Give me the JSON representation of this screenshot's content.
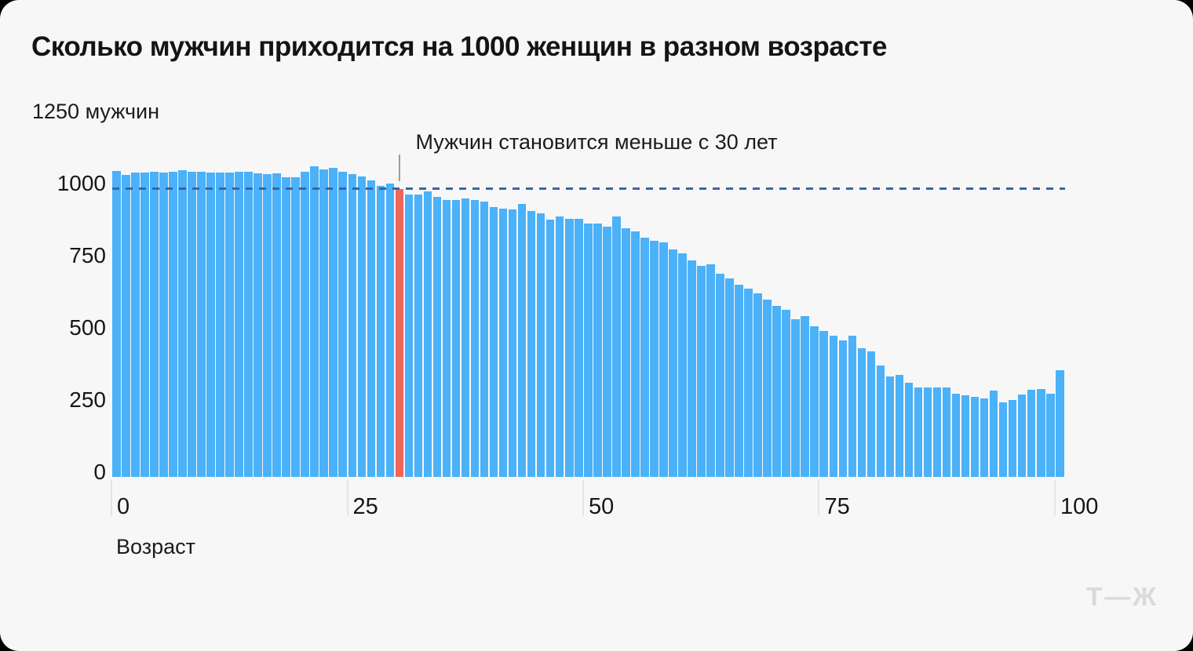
{
  "title": "Сколько мужчин приходится на 1000 женщин в разном возрасте",
  "y_axis_top_label": "1250 мужчин",
  "x_axis_title": "Возраст",
  "annotation": {
    "text": "Мужчин становится меньше с 30 лет",
    "points_to_age": 30
  },
  "logo_text": "Т—Ж",
  "colors": {
    "background": "#F7F7F8",
    "bar": "#4BB1F8",
    "highlight_bar": "#F1655A",
    "reference_line": "#3568A8",
    "pointer_line": "#9C9C9C",
    "text": "#161616",
    "logo": "#DADADA"
  },
  "chart_data": {
    "type": "bar",
    "xlabel": "Возраст",
    "ylabel": "мужчин",
    "x_start_age": 0,
    "x_end_age": 100,
    "values": [
      1061,
      1047,
      1054,
      1054,
      1058,
      1054,
      1056,
      1063,
      1056,
      1056,
      1054,
      1054,
      1054,
      1056,
      1056,
      1052,
      1049,
      1051,
      1037,
      1037,
      1058,
      1075,
      1066,
      1072,
      1058,
      1050,
      1042,
      1028,
      1008,
      1017,
      996,
      979,
      979,
      988,
      970,
      959,
      959,
      966,
      960,
      954,
      934,
      929,
      927,
      945,
      920,
      912,
      891,
      903,
      893,
      893,
      879,
      879,
      868,
      903,
      862,
      850,
      830,
      817,
      812,
      787,
      775,
      749,
      732,
      737,
      704,
      687,
      666,
      651,
      636,
      613,
      592,
      580,
      547,
      556,
      522,
      506,
      488,
      474,
      490,
      447,
      434,
      386,
      348,
      354,
      325,
      311,
      311,
      310,
      310,
      289,
      284,
      277,
      271,
      298,
      257,
      266,
      286,
      301,
      305,
      289,
      369
    ],
    "highlight_index": 30,
    "reference_line_value": 1000,
    "x_ticks": [
      0,
      25,
      50,
      75,
      100
    ],
    "y_ticks": [
      0,
      250,
      500,
      750,
      1000
    ],
    "ylim": [
      0,
      1250
    ],
    "grid": false,
    "legend": false
  }
}
